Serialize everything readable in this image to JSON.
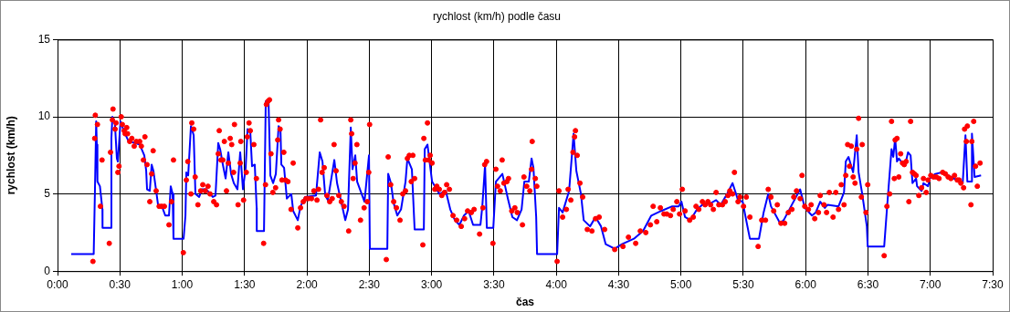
{
  "chart_data": {
    "type": "line",
    "title": "rychlost (km/h) podle času",
    "xlabel": "čas",
    "ylabel": "rychlost (km/h)",
    "xlim": [
      0,
      7.5
    ],
    "ylim": [
      0,
      15
    ],
    "xticks": [
      {
        "value": 0,
        "label": "0:00"
      },
      {
        "value": 0.5,
        "label": "0:30"
      },
      {
        "value": 1,
        "label": "1:00"
      },
      {
        "value": 1.5,
        "label": "1:30"
      },
      {
        "value": 2,
        "label": "2:00"
      },
      {
        "value": 2.5,
        "label": "2:30"
      },
      {
        "value": 3,
        "label": "3:00"
      },
      {
        "value": 3.5,
        "label": "3:30"
      },
      {
        "value": 4,
        "label": "4:00"
      },
      {
        "value": 4.5,
        "label": "4:30"
      },
      {
        "value": 5,
        "label": "5:00"
      },
      {
        "value": 5.5,
        "label": "5:30"
      },
      {
        "value": 6,
        "label": "6:00"
      },
      {
        "value": 6.5,
        "label": "6:30"
      },
      {
        "value": 7,
        "label": "7:00"
      },
      {
        "value": 7.5,
        "label": "7:30"
      }
    ],
    "yticks": [
      0,
      5,
      10,
      15
    ],
    "grid": true,
    "legend": false,
    "series": [
      {
        "type": "line",
        "color": "#0000ff",
        "marker": "none",
        "x": [
          0.11,
          0.29,
          0.3,
          0.31,
          0.315,
          0.32,
          0.34,
          0.36,
          0.361,
          0.425,
          0.432,
          0.44,
          0.46,
          0.476,
          0.484,
          0.505,
          0.535,
          0.571,
          0.623,
          0.659,
          0.696,
          0.711,
          0.718,
          0.74,
          0.755,
          0.769,
          0.791,
          0.806,
          0.842,
          0.864,
          0.894,
          0.908,
          0.923,
          0.93,
          1.011,
          1.026,
          1.033,
          1.048,
          1.07,
          1.092,
          1.106,
          1.136,
          1.158,
          1.194,
          1.245,
          1.267,
          1.289,
          1.304,
          1.326,
          1.348,
          1.37,
          1.392,
          1.414,
          1.443,
          1.465,
          1.473,
          1.487,
          1.509,
          1.524,
          1.546,
          1.56,
          1.582,
          1.597,
          1.598,
          1.656,
          1.67,
          1.692,
          1.707,
          1.729,
          1.751,
          1.773,
          1.788,
          1.795,
          1.817,
          1.839,
          1.875,
          1.89,
          1.927,
          1.949,
          1.985,
          2.073,
          2.103,
          2.125,
          2.147,
          2.168,
          2.22,
          2.242,
          2.308,
          2.33,
          2.352,
          2.366,
          2.388,
          2.403,
          2.462,
          2.498,
          2.505,
          2.645,
          2.652,
          2.674,
          2.696,
          2.725,
          2.755,
          2.791,
          2.806,
          2.842,
          2.864,
          2.938,
          2.945,
          2.967,
          3.004,
          3.062,
          3.114,
          3.15,
          3.187,
          3.223,
          3.26,
          3.297,
          3.333,
          3.392,
          3.407,
          3.429,
          3.443,
          3.495,
          3.516,
          3.568,
          3.612,
          3.648,
          3.685,
          3.722,
          3.744,
          3.78,
          3.802,
          3.817,
          3.839,
          3.846,
          4.007,
          4.022,
          4.051,
          4.103,
          4.139,
          4.161,
          4.198,
          4.22,
          4.271,
          4.315,
          4.359,
          4.396,
          4.469,
          4.527,
          4.623,
          4.696,
          4.762,
          4.842,
          4.93,
          4.982,
          5.004,
          5.033,
          5.077,
          5.128,
          5.172,
          5.238,
          5.282,
          5.319,
          5.37,
          5.414,
          5.458,
          5.495,
          5.516,
          5.553,
          5.626,
          5.663,
          5.7,
          5.722,
          5.795,
          5.824,
          5.883,
          5.956,
          5.993,
          6.051,
          6.081,
          6.117,
          6.154,
          6.176,
          6.264,
          6.308,
          6.322,
          6.344,
          6.381,
          6.41,
          6.425,
          6.454,
          6.491,
          6.498,
          6.63,
          6.652,
          6.689,
          6.703,
          6.718,
          6.733,
          6.747,
          6.777,
          6.799,
          6.821,
          6.842,
          6.857,
          6.886,
          6.894,
          6.93,
          6.945,
          6.982,
          6.996,
          7.04,
          7.092,
          7.165,
          7.238,
          7.26,
          7.282,
          7.297,
          7.333,
          7.334,
          7.355,
          7.407
        ],
        "values": [
          1.1,
          1.1,
          5.2,
          9.7,
          8.2,
          5.8,
          5.5,
          4.0,
          2.8,
          2.8,
          8.6,
          10.0,
          9.6,
          7.3,
          7.1,
          9.7,
          9.0,
          8.4,
          8.3,
          8.2,
          7.5,
          6.5,
          5.3,
          5.2,
          6.9,
          6.5,
          5.2,
          4.3,
          4.1,
          3.6,
          3.6,
          5.5,
          5.0,
          2.1,
          2.1,
          3.6,
          6.4,
          6.2,
          9.4,
          8.8,
          5.0,
          4.8,
          5.3,
          5.3,
          4.8,
          4.9,
          8.3,
          7.9,
          6.9,
          6.0,
          7.7,
          6.3,
          5.7,
          5.3,
          7.7,
          6.9,
          5.3,
          6.7,
          9.2,
          9.0,
          6.8,
          6.9,
          4.1,
          2.6,
          2.6,
          11.0,
          11.1,
          6.2,
          5.7,
          6.3,
          9.4,
          9.2,
          6.9,
          6.7,
          4.7,
          5.0,
          3.9,
          3.3,
          4.2,
          4.8,
          4.9,
          7.7,
          7.1,
          4.9,
          4.6,
          7.2,
          5.7,
          3.3,
          4.0,
          9.3,
          6.6,
          7.5,
          5.8,
          4.5,
          7.5,
          1.45,
          1.45,
          6.3,
          5.7,
          4.4,
          3.6,
          4.0,
          5.8,
          7.3,
          6.6,
          2.7,
          2.7,
          7.9,
          8.2,
          5.8,
          5.0,
          5.2,
          4.0,
          3.3,
          3.0,
          3.6,
          3.9,
          3.0,
          3.0,
          4.2,
          6.9,
          2.8,
          2.8,
          5.8,
          6.3,
          4.7,
          3.5,
          3.3,
          4.0,
          5.8,
          5.8,
          7.3,
          6.7,
          3.5,
          1.1,
          1.1,
          4.1,
          3.8,
          5.2,
          8.9,
          6.5,
          5.0,
          3.3,
          2.9,
          3.5,
          2.9,
          1.75,
          1.45,
          1.75,
          2.1,
          2.6,
          3.6,
          3.9,
          4.2,
          4.2,
          4.5,
          3.5,
          3.3,
          4.0,
          4.3,
          4.4,
          4.6,
          4.3,
          5.0,
          5.7,
          4.6,
          4.5,
          3.6,
          2.1,
          2.1,
          3.8,
          5.0,
          4.2,
          3.1,
          3.3,
          4.2,
          5.3,
          4.1,
          3.6,
          3.8,
          4.5,
          4.1,
          4.3,
          4.2,
          5.1,
          7.1,
          7.4,
          6.4,
          8.8,
          6.4,
          5.0,
          2.9,
          1.6,
          1.6,
          4.0,
          7.9,
          7.4,
          8.6,
          7.1,
          7.3,
          7.0,
          6.9,
          7.7,
          7.5,
          5.7,
          6.0,
          5.5,
          5.2,
          5.7,
          5.5,
          6.0,
          6.3,
          6.4,
          6.1,
          5.8,
          5.7,
          8.8,
          5.8,
          5.8,
          8.9,
          6.1,
          6.2
        ]
      },
      {
        "type": "scatter",
        "color": "#ff0000",
        "marker": "circle",
        "x": [
          0.284,
          0.303,
          0.298,
          0.32,
          0.344,
          0.357,
          0.415,
          0.425,
          0.445,
          0.44,
          0.462,
          0.469,
          0.484,
          0.493,
          0.511,
          0.52,
          0.535,
          0.555,
          0.542,
          0.562,
          0.579,
          0.596,
          0.615,
          0.632,
          0.659,
          0.672,
          0.689,
          0.701,
          0.718,
          0.74,
          0.755,
          0.767,
          0.791,
          0.815,
          0.835,
          0.857,
          0.894,
          0.914,
          0.93,
          1.009,
          1.033,
          1.045,
          1.07,
          1.077,
          1.092,
          1.104,
          1.126,
          1.148,
          1.165,
          1.185,
          1.207,
          1.223,
          1.253,
          1.275,
          1.297,
          1.289,
          1.311,
          1.326,
          1.338,
          1.355,
          1.37,
          1.385,
          1.397,
          1.412,
          1.419,
          1.448,
          1.465,
          1.47,
          1.492,
          1.514,
          1.522,
          1.536,
          1.546,
          1.575,
          1.595,
          1.653,
          1.668,
          1.675,
          1.687,
          1.7,
          1.712,
          1.727,
          1.749,
          1.766,
          1.773,
          1.785,
          1.815,
          1.8,
          1.829,
          1.848,
          1.873,
          1.89,
          1.927,
          1.949,
          1.971,
          1.993,
          2.012,
          2.037,
          2.056,
          2.081,
          2.093,
          2.11,
          2.122,
          2.139,
          2.161,
          2.183,
          2.203,
          2.218,
          2.234,
          2.256,
          2.276,
          2.298,
          2.335,
          2.352,
          2.359,
          2.371,
          2.386,
          2.401,
          2.43,
          2.459,
          2.484,
          2.496,
          2.503,
          2.637,
          2.652,
          2.672,
          2.696,
          2.718,
          2.747,
          2.769,
          2.791,
          2.806,
          2.821,
          2.837,
          2.85,
          2.864,
          2.93,
          2.938,
          2.95,
          2.967,
          2.977,
          2.989,
          3.004,
          3.026,
          3.042,
          3.062,
          3.082,
          3.104,
          3.121,
          3.143,
          3.172,
          3.201,
          3.238,
          3.265,
          3.289,
          3.319,
          3.341,
          3.385,
          3.412,
          3.426,
          3.441,
          3.492,
          3.516,
          3.529,
          3.551,
          3.566,
          3.58,
          3.604,
          3.617,
          3.643,
          3.668,
          3.687,
          3.729,
          3.741,
          3.763,
          3.788,
          3.807,
          3.802,
          3.832,
          3.844,
          4.007,
          4.022,
          4.051,
          4.081,
          4.095,
          4.117,
          4.134,
          4.147,
          4.154,
          4.168,
          4.19,
          4.212,
          4.249,
          4.286,
          4.315,
          4.344,
          4.388,
          4.469,
          4.535,
          4.579,
          4.637,
          4.674,
          4.718,
          4.755,
          4.777,
          4.806,
          4.835,
          4.864,
          4.886,
          4.916,
          4.938,
          4.967,
          4.989,
          5.011,
          5.033,
          5.07,
          5.099,
          5.121,
          5.143,
          5.172,
          5.194,
          5.216,
          5.238,
          5.26,
          5.282,
          5.304,
          5.333,
          5.355,
          5.377,
          5.392,
          5.414,
          5.429,
          5.458,
          5.473,
          5.502,
          5.524,
          5.553,
          5.619,
          5.648,
          5.678,
          5.7,
          5.722,
          5.744,
          5.773,
          5.802,
          5.832,
          5.861,
          5.89,
          5.905,
          5.927,
          5.956,
          5.971,
          5.993,
          6.022,
          6.044,
          6.073,
          6.103,
          6.117,
          6.147,
          6.168,
          6.19,
          6.22,
          6.242,
          6.264,
          6.286,
          6.308,
          6.322,
          6.337,
          6.352,
          6.366,
          6.381,
          6.396,
          6.41,
          6.425,
          6.447,
          6.454,
          6.484,
          6.498,
          6.63,
          6.652,
          6.674,
          6.689,
          6.711,
          6.718,
          6.733,
          6.747,
          6.762,
          6.777,
          6.791,
          6.806,
          6.828,
          6.842,
          6.857,
          6.872,
          6.886,
          6.908,
          6.93,
          6.945,
          6.967,
          6.982,
          7.004,
          7.026,
          7.048,
          7.07,
          7.099,
          7.121,
          7.143,
          7.165,
          7.194,
          7.216,
          7.231,
          7.245,
          7.267,
          7.275,
          7.289,
          7.297,
          7.326,
          7.333,
          7.348,
          7.363,
          7.377,
          7.399
        ],
        "values": [
          0.63,
          10.1,
          8.6,
          9.5,
          4.2,
          7.2,
          1.8,
          7.7,
          10.5,
          9.8,
          9.2,
          9.6,
          6.4,
          6.8,
          10.0,
          9.5,
          9.1,
          9.3,
          8.9,
          8.9,
          8.4,
          8.6,
          8.1,
          8.4,
          8.4,
          8.1,
          7.2,
          8.7,
          6.9,
          4.5,
          6.3,
          7.8,
          5.2,
          4.2,
          4.2,
          4.2,
          3.0,
          4.5,
          7.2,
          1.2,
          5.9,
          7.1,
          5.0,
          9.6,
          9.2,
          6.1,
          4.3,
          5.2,
          5.6,
          5.2,
          5.5,
          5.0,
          4.5,
          4.3,
          9.1,
          7.6,
          7.2,
          7.2,
          8.4,
          5.2,
          7.0,
          8.6,
          8.2,
          6.4,
          9.5,
          4.3,
          7.0,
          8.4,
          4.6,
          6.4,
          8.7,
          9.6,
          9.1,
          8.2,
          6.0,
          1.8,
          5.6,
          10.8,
          11.0,
          11.1,
          7.6,
          5.1,
          5.4,
          8.5,
          9.8,
          9.2,
          7.7,
          5.9,
          5.9,
          5.8,
          4.0,
          7.0,
          2.8,
          4.1,
          4.5,
          4.7,
          4.7,
          4.7,
          5.2,
          4.6,
          5.3,
          9.8,
          6.4,
          6.7,
          4.9,
          4.5,
          4.7,
          8.2,
          6.5,
          4.9,
          4.5,
          4.2,
          2.6,
          9.8,
          8.9,
          6.0,
          7.0,
          8.2,
          3.3,
          4.1,
          4.5,
          6.4,
          9.5,
          0.75,
          7.4,
          5.6,
          4.5,
          4.1,
          3.3,
          5.0,
          5.2,
          7.3,
          7.5,
          5.8,
          7.5,
          6.0,
          1.7,
          8.6,
          7.2,
          9.6,
          7.2,
          7.5,
          7.0,
          5.3,
          5.5,
          5.3,
          4.9,
          5.1,
          5.6,
          5.3,
          3.6,
          3.3,
          2.9,
          3.4,
          3.9,
          3.8,
          4.0,
          2.4,
          4.1,
          6.9,
          7.1,
          1.8,
          6.6,
          5.5,
          5.2,
          7.2,
          5.7,
          5.8,
          6.0,
          3.9,
          4.1,
          3.8,
          3.0,
          6.1,
          5.5,
          5.2,
          8.4,
          6.6,
          6.0,
          5.5,
          0.63,
          5.2,
          3.5,
          4.0,
          5.3,
          4.6,
          7.7,
          8.7,
          9.1,
          7.5,
          5.7,
          4.8,
          2.7,
          2.6,
          3.4,
          3.5,
          2.7,
          1.4,
          1.6,
          2.2,
          1.8,
          2.6,
          2.5,
          3.0,
          4.2,
          3.2,
          4.1,
          3.7,
          3.7,
          3.6,
          4.0,
          4.5,
          3.7,
          5.3,
          3.9,
          3.3,
          3.5,
          4.2,
          4.0,
          4.5,
          4.3,
          4.5,
          4.3,
          4.0,
          5.1,
          4.3,
          4.3,
          4.5,
          4.9,
          5.2,
          5.0,
          6.4,
          4.5,
          4.8,
          4.2,
          4.8,
          3.5,
          1.6,
          3.3,
          3.3,
          5.3,
          4.8,
          3.9,
          4.3,
          3.1,
          3.1,
          3.8,
          4.0,
          4.8,
          5.2,
          4.7,
          6.2,
          4.2,
          4.0,
          4.3,
          3.4,
          3.8,
          4.9,
          4.3,
          3.8,
          5.1,
          3.5,
          5.1,
          4.0,
          5.6,
          4.3,
          6.2,
          8.2,
          6.8,
          8.1,
          6.1,
          5.7,
          7.9,
          9.9,
          4.8,
          8.2,
          3.8,
          5.6,
          1.0,
          4.2,
          5.0,
          9.7,
          6.0,
          8.5,
          8.6,
          6.1,
          7.6,
          7.0,
          6.9,
          7.1,
          4.5,
          9.7,
          6.4,
          6.3,
          6.2,
          4.9,
          5.4,
          6.0,
          5.1,
          5.9,
          6.2,
          6.1,
          6.1,
          6.0,
          6.4,
          6.3,
          6.1,
          6.0,
          6.2,
          5.9,
          5.9,
          5.7,
          5.4,
          9.2,
          8.4,
          9.4,
          4.3,
          8.4,
          9.7,
          6.8,
          5.5,
          7.0
        ]
      }
    ]
  }
}
